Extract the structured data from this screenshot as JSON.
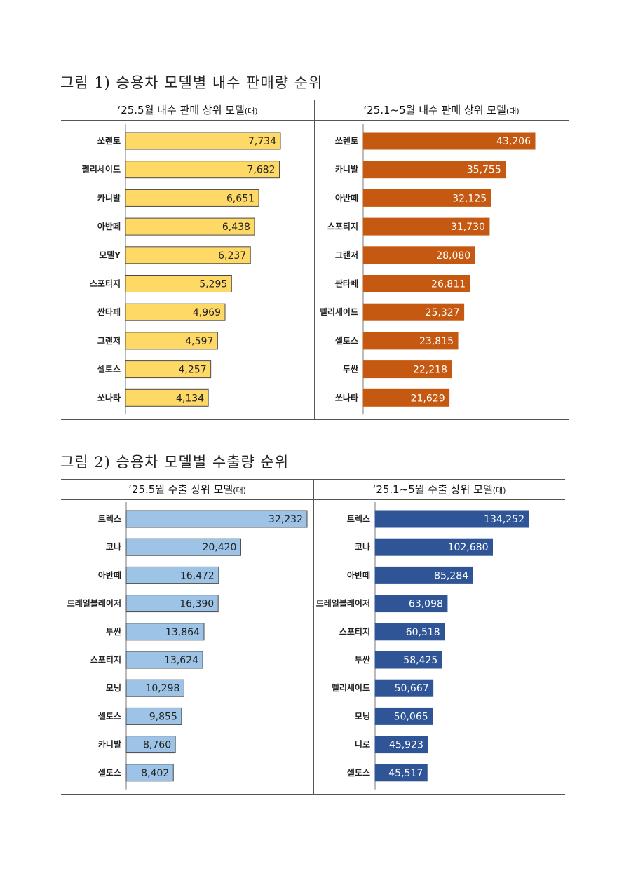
{
  "figure1": {
    "title": "그림 1) 승용차 모델별 내수 판매량 순위"
  },
  "figure2": {
    "title": "그림 2) 승용차 모델별 수출량 순위"
  },
  "chart_data": [
    {
      "id": "c1",
      "type": "bar",
      "orientation": "horizontal",
      "title": "‘25.5월 내수 판매 상위 모델",
      "unit": "(대)",
      "color": "#FFD966",
      "border": "#4a4a4a",
      "label_color": "#222222",
      "categories": [
        "쏘렌토",
        "펠리세이드",
        "카니발",
        "아반떼",
        "모델Y",
        "스포티지",
        "싼타페",
        "그랜저",
        "셀토스",
        "쏘나타"
      ],
      "values": [
        7734,
        7682,
        6651,
        6438,
        6237,
        5295,
        4969,
        4597,
        4257,
        4134
      ],
      "labels": [
        "7,734",
        "7,682",
        "6,651",
        "6,438",
        "6,237",
        "5,295",
        "4,969",
        "4,597",
        "4,257",
        "4,134"
      ],
      "xlim": [
        0,
        7734
      ]
    },
    {
      "id": "c2",
      "type": "bar",
      "orientation": "horizontal",
      "title": "‘25.1~5월 내수 판매 상위 모델",
      "unit": "(대)",
      "color": "#C65911",
      "border": "#C65911",
      "label_color": "#ffffff",
      "categories": [
        "쏘렌토",
        "카니발",
        "아반떼",
        "스포티지",
        "그랜저",
        "싼타페",
        "펠리세이드",
        "셀토스",
        "투싼",
        "쏘나타"
      ],
      "values": [
        43206,
        35755,
        32125,
        31730,
        28080,
        26811,
        25327,
        23815,
        22218,
        21629
      ],
      "labels": [
        "43,206",
        "35,755",
        "32,125",
        "31,730",
        "28,080",
        "26,811",
        "25,327",
        "23,815",
        "22,218",
        "21,629"
      ],
      "xlim": [
        0,
        43206
      ]
    },
    {
      "id": "c3",
      "type": "bar",
      "orientation": "horizontal",
      "title": "‘25.5월 수출 상위 모델",
      "unit": "(대)",
      "color": "#9DC3E6",
      "border": "#4a4a4a",
      "label_color": "#222222",
      "categories": [
        "트렉스",
        "코나",
        "아반떼",
        "트레일블레이저",
        "투싼",
        "스포티지",
        "모닝",
        "셀토스",
        "카니발",
        "셀토스"
      ],
      "values": [
        32232,
        20420,
        16472,
        16390,
        13864,
        13624,
        10298,
        9855,
        8760,
        8402
      ],
      "labels": [
        "32,232",
        "20,420",
        "16,472",
        "16,390",
        "13,864",
        "13,624",
        "10,298",
        "9,855",
        "8,760",
        "8,402"
      ],
      "xlim": [
        0,
        32232
      ]
    },
    {
      "id": "c4",
      "type": "bar",
      "orientation": "horizontal",
      "title": "‘25.1~5월 수출 상위 모델",
      "unit": "(대)",
      "color": "#2F5597",
      "border": "#2F5597",
      "label_color": "#ffffff",
      "categories": [
        "트렉스",
        "코나",
        "아반떼",
        "트레일블레이저",
        "스포티지",
        "투싼",
        "펠리세이드",
        "모닝",
        "니로",
        "셀토스"
      ],
      "values": [
        134252,
        102680,
        85284,
        63098,
        60518,
        58425,
        50667,
        50065,
        45923,
        45517
      ],
      "labels": [
        "134,252",
        "102,680",
        "85,284",
        "63,098",
        "60,518",
        "58,425",
        "50,667",
        "50,065",
        "45,923",
        "45,517"
      ],
      "xlim": [
        0,
        134252
      ]
    }
  ]
}
